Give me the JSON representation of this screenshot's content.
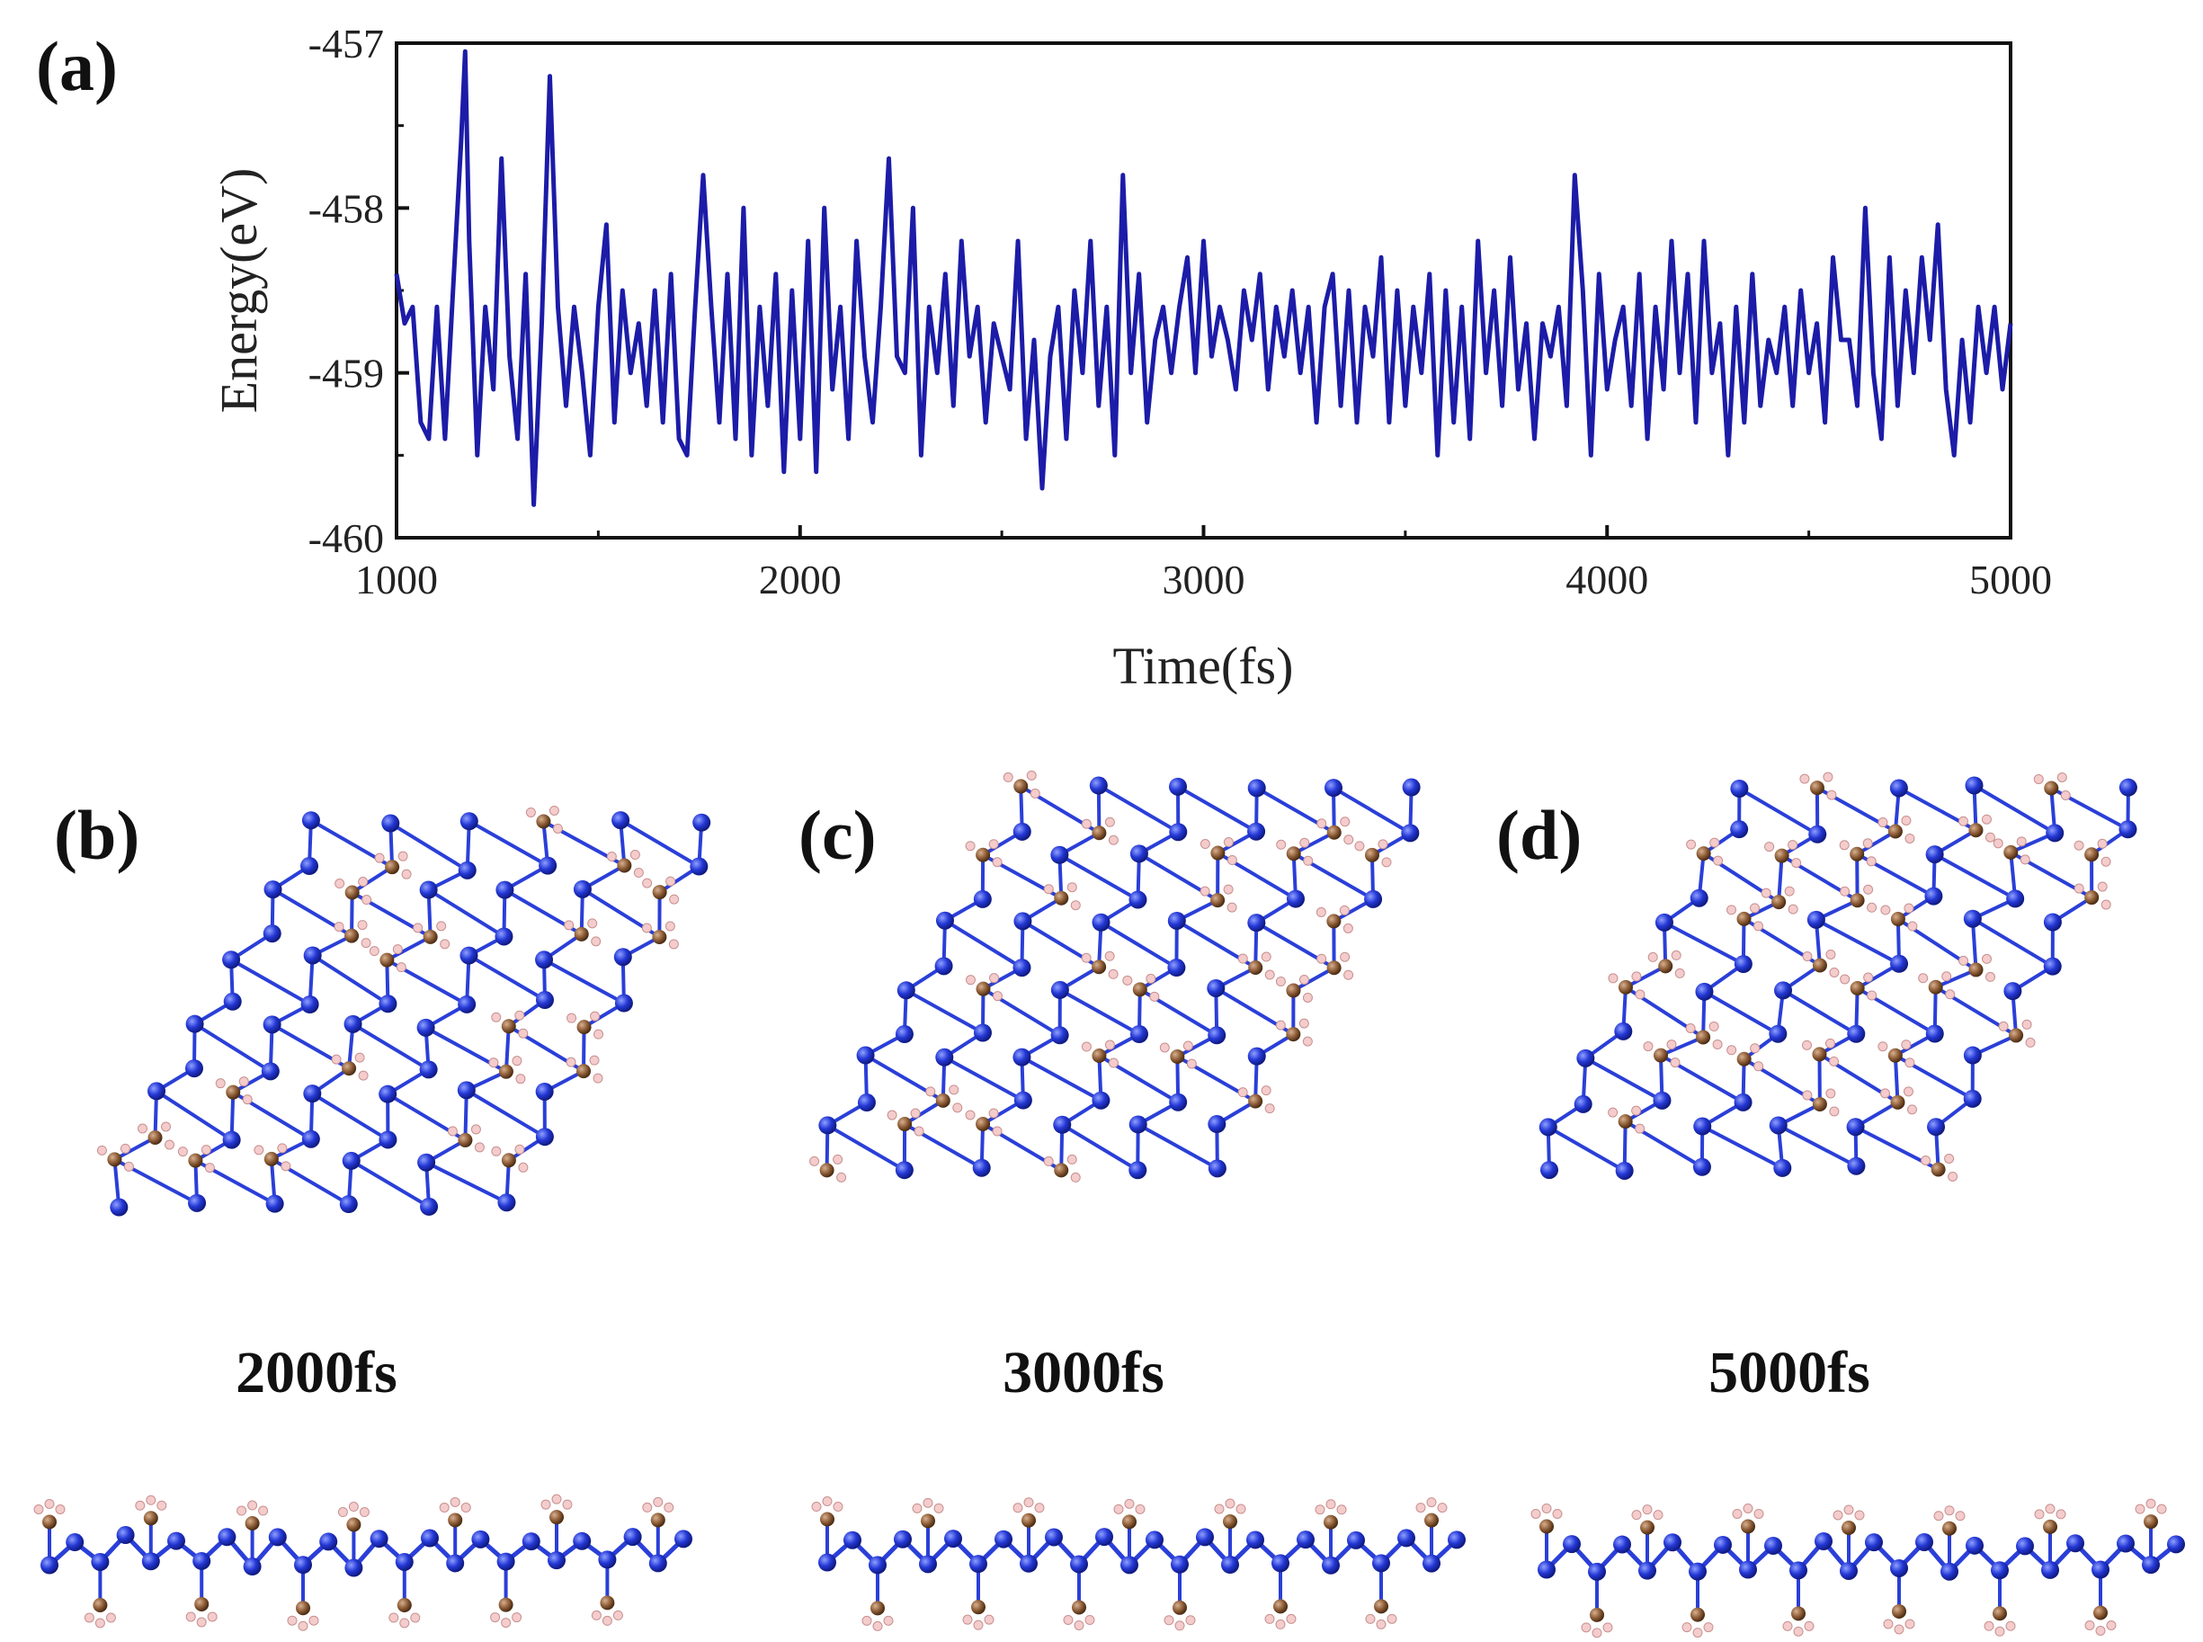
{
  "panels": {
    "a": "(a)",
    "b": "(b)",
    "c": "(c)",
    "d": "(d)"
  },
  "snapshots": [
    {
      "label": "2000fs"
    },
    {
      "label": "3000fs"
    },
    {
      "label": "5000fs"
    }
  ],
  "chart_data": {
    "type": "line",
    "xlabel": "Time(fs)",
    "ylabel": "Energy(eV)",
    "xlim": [
      1000,
      5000
    ],
    "ylim": [
      -460,
      -457
    ],
    "xticks": [
      1000,
      2000,
      3000,
      4000,
      5000
    ],
    "yticks": [
      -457,
      -458,
      -459,
      -460
    ],
    "grid": false,
    "color": "#1c1ca8",
    "series": [
      {
        "x": [
          1000,
          1020,
          1040,
          1060,
          1080,
          1100,
          1120,
          1140,
          1160,
          1170,
          1180,
          1200,
          1220,
          1240,
          1260,
          1280,
          1300,
          1320,
          1340,
          1360,
          1380,
          1400,
          1420,
          1440,
          1460,
          1480,
          1500,
          1520,
          1540,
          1560,
          1580,
          1600,
          1620,
          1640,
          1660,
          1680,
          1700,
          1720,
          1740,
          1760,
          1780,
          1800,
          1820,
          1840,
          1860,
          1880,
          1900,
          1920,
          1940,
          1960,
          1980,
          2000,
          2020,
          2040,
          2060,
          2080,
          2100,
          2120,
          2140,
          2160,
          2180,
          2200,
          2220,
          2240,
          2260,
          2280,
          2300,
          2320,
          2340,
          2360,
          2380,
          2400,
          2420,
          2440,
          2460,
          2480,
          2500,
          2520,
          2540,
          2560,
          2580,
          2600,
          2620,
          2640,
          2660,
          2680,
          2700,
          2720,
          2740,
          2760,
          2780,
          2800,
          2820,
          2840,
          2860,
          2880,
          2900,
          2920,
          2940,
          2960,
          2980,
          3000,
          3020,
          3040,
          3060,
          3080,
          3100,
          3120,
          3140,
          3160,
          3180,
          3200,
          3220,
          3240,
          3260,
          3280,
          3300,
          3320,
          3340,
          3360,
          3380,
          3400,
          3420,
          3440,
          3460,
          3480,
          3500,
          3520,
          3540,
          3560,
          3580,
          3600,
          3620,
          3640,
          3660,
          3680,
          3700,
          3720,
          3740,
          3760,
          3780,
          3800,
          3820,
          3840,
          3860,
          3880,
          3900,
          3920,
          3940,
          3960,
          3980,
          4000,
          4020,
          4040,
          4060,
          4080,
          4100,
          4120,
          4140,
          4160,
          4180,
          4200,
          4220,
          4240,
          4260,
          4280,
          4300,
          4320,
          4340,
          4360,
          4380,
          4400,
          4420,
          4440,
          4460,
          4480,
          4500,
          4520,
          4540,
          4560,
          4580,
          4600,
          4620,
          4640,
          4660,
          4680,
          4700,
          4720,
          4740,
          4760,
          4780,
          4800,
          4820,
          4840,
          4860,
          4880,
          4900,
          4920,
          4940,
          4960,
          4980,
          5000
        ],
        "y": [
          -458.4,
          -458.7,
          -458.6,
          -459.3,
          -459.4,
          -458.6,
          -459.4,
          -458.5,
          -457.6,
          -457.05,
          -458.2,
          -459.5,
          -458.6,
          -459.1,
          -457.7,
          -458.9,
          -459.4,
          -458.4,
          -459.8,
          -458.7,
          -457.2,
          -458.6,
          -459.2,
          -458.6,
          -459.0,
          -459.5,
          -458.6,
          -458.1,
          -459.3,
          -458.5,
          -459.0,
          -458.7,
          -459.2,
          -458.5,
          -459.3,
          -458.4,
          -459.4,
          -459.5,
          -458.6,
          -457.8,
          -458.6,
          -459.3,
          -458.4,
          -459.4,
          -458.0,
          -459.5,
          -458.6,
          -459.2,
          -458.4,
          -459.6,
          -458.5,
          -459.4,
          -458.2,
          -459.6,
          -458.0,
          -459.1,
          -458.6,
          -459.4,
          -458.2,
          -458.9,
          -459.3,
          -458.6,
          -457.7,
          -458.9,
          -459.0,
          -458.0,
          -459.5,
          -458.6,
          -459.0,
          -458.4,
          -459.2,
          -458.2,
          -458.9,
          -458.6,
          -459.3,
          -458.7,
          -458.9,
          -459.1,
          -458.2,
          -459.4,
          -458.8,
          -459.7,
          -458.9,
          -458.6,
          -459.4,
          -458.5,
          -459.0,
          -458.2,
          -459.2,
          -458.6,
          -459.5,
          -457.8,
          -459.0,
          -458.4,
          -459.3,
          -458.8,
          -458.6,
          -459.0,
          -458.6,
          -458.3,
          -459.0,
          -458.2,
          -458.9,
          -458.6,
          -458.8,
          -459.1,
          -458.5,
          -458.8,
          -458.4,
          -459.1,
          -458.6,
          -458.9,
          -458.5,
          -459.0,
          -458.6,
          -459.3,
          -458.6,
          -458.4,
          -459.2,
          -458.5,
          -459.3,
          -458.6,
          -458.9,
          -458.3,
          -459.3,
          -458.5,
          -459.2,
          -458.6,
          -459.0,
          -458.4,
          -459.5,
          -458.5,
          -459.3,
          -458.6,
          -459.4,
          -458.2,
          -459.0,
          -458.5,
          -459.2,
          -458.3,
          -459.1,
          -458.7,
          -459.4,
          -458.7,
          -458.9,
          -458.6,
          -459.2,
          -457.8,
          -458.5,
          -459.5,
          -458.4,
          -459.1,
          -458.8,
          -458.6,
          -459.2,
          -458.4,
          -459.4,
          -458.6,
          -459.1,
          -458.2,
          -459.0,
          -458.4,
          -459.3,
          -458.2,
          -459.0,
          -458.7,
          -459.5,
          -458.6,
          -459.3,
          -458.4,
          -459.2,
          -458.8,
          -459.0,
          -458.6,
          -459.2,
          -458.5,
          -459.0,
          -458.7,
          -459.3,
          -458.3,
          -458.8,
          -458.8,
          -459.2,
          -458.0,
          -459.0,
          -459.4,
          -458.3,
          -459.2,
          -458.5,
          -459.0,
          -458.3,
          -458.8,
          -458.1,
          -459.1,
          -459.5,
          -458.8,
          -459.3,
          -458.6,
          -459.0,
          -458.6,
          -459.1,
          -458.7
        ]
      }
    ]
  }
}
